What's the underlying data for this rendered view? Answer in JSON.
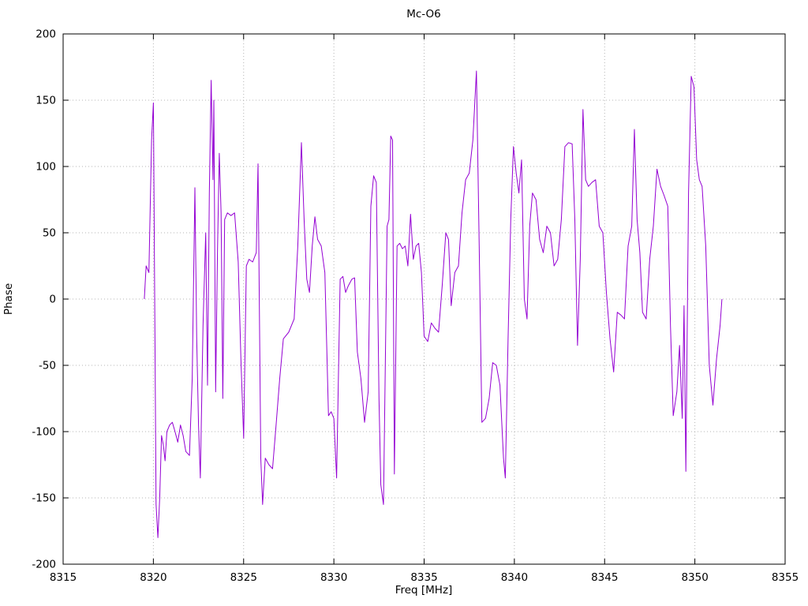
{
  "chart_data": {
    "type": "line",
    "title": "Mc-O6",
    "xlabel": "Freq [MHz]",
    "ylabel": "Phase",
    "xlim": [
      8315,
      8355
    ],
    "ylim": [
      -200,
      200
    ],
    "xticks": [
      8315,
      8320,
      8325,
      8330,
      8335,
      8340,
      8345,
      8350,
      8355
    ],
    "yticks": [
      -200,
      -150,
      -100,
      -50,
      0,
      50,
      100,
      150,
      200
    ],
    "grid": true,
    "legend": "none",
    "line_color": "#9400d3",
    "series": [
      {
        "name": "Phase",
        "color": "#9400d3",
        "points": [
          [
            8319.5,
            0
          ],
          [
            8319.6,
            25
          ],
          [
            8319.75,
            20
          ],
          [
            8319.9,
            120
          ],
          [
            8320.0,
            148
          ],
          [
            8320.15,
            -155
          ],
          [
            8320.25,
            -180
          ],
          [
            8320.35,
            -150
          ],
          [
            8320.45,
            -103
          ],
          [
            8320.55,
            -110
          ],
          [
            8320.65,
            -122
          ],
          [
            8320.75,
            -100
          ],
          [
            8320.9,
            -95
          ],
          [
            8321.05,
            -93
          ],
          [
            8321.2,
            -100
          ],
          [
            8321.35,
            -108
          ],
          [
            8321.5,
            -95
          ],
          [
            8321.65,
            -103
          ],
          [
            8321.8,
            -115
          ],
          [
            8322.0,
            -118
          ],
          [
            8322.15,
            -60
          ],
          [
            8322.3,
            84
          ],
          [
            8322.4,
            -30
          ],
          [
            8322.5,
            -95
          ],
          [
            8322.6,
            -135
          ],
          [
            8322.75,
            -20
          ],
          [
            8322.9,
            50
          ],
          [
            8323.0,
            -65
          ],
          [
            8323.1,
            80
          ],
          [
            8323.2,
            165
          ],
          [
            8323.3,
            90
          ],
          [
            8323.35,
            150
          ],
          [
            8323.45,
            -70
          ],
          [
            8323.55,
            35
          ],
          [
            8323.65,
            110
          ],
          [
            8323.75,
            65
          ],
          [
            8323.85,
            -75
          ],
          [
            8323.95,
            60
          ],
          [
            8324.1,
            65
          ],
          [
            8324.3,
            63
          ],
          [
            8324.5,
            65
          ],
          [
            8324.7,
            28
          ],
          [
            8324.85,
            -45
          ],
          [
            8325.0,
            -105
          ],
          [
            8325.15,
            25
          ],
          [
            8325.3,
            30
          ],
          [
            8325.5,
            28
          ],
          [
            8325.7,
            35
          ],
          [
            8325.8,
            102
          ],
          [
            8325.95,
            -120
          ],
          [
            8326.05,
            -155
          ],
          [
            8326.2,
            -120
          ],
          [
            8326.4,
            -125
          ],
          [
            8326.6,
            -128
          ],
          [
            8326.8,
            -95
          ],
          [
            8327.0,
            -60
          ],
          [
            8327.2,
            -30
          ],
          [
            8327.5,
            -25
          ],
          [
            8327.8,
            -15
          ],
          [
            8328.0,
            40
          ],
          [
            8328.2,
            118
          ],
          [
            8328.35,
            60
          ],
          [
            8328.5,
            15
          ],
          [
            8328.65,
            5
          ],
          [
            8328.8,
            40
          ],
          [
            8328.95,
            62
          ],
          [
            8329.1,
            45
          ],
          [
            8329.3,
            40
          ],
          [
            8329.5,
            20
          ],
          [
            8329.7,
            -88
          ],
          [
            8329.85,
            -85
          ],
          [
            8330.0,
            -90
          ],
          [
            8330.15,
            -135
          ],
          [
            8330.35,
            15
          ],
          [
            8330.5,
            17
          ],
          [
            8330.65,
            5
          ],
          [
            8330.8,
            10
          ],
          [
            8331.0,
            15
          ],
          [
            8331.15,
            16
          ],
          [
            8331.3,
            -40
          ],
          [
            8331.5,
            -60
          ],
          [
            8331.7,
            -93
          ],
          [
            8331.9,
            -70
          ],
          [
            8332.05,
            70
          ],
          [
            8332.2,
            93
          ],
          [
            8332.35,
            88
          ],
          [
            8332.5,
            -75
          ],
          [
            8332.6,
            -140
          ],
          [
            8332.75,
            -155
          ],
          [
            8332.95,
            55
          ],
          [
            8333.05,
            60
          ],
          [
            8333.15,
            123
          ],
          [
            8333.25,
            120
          ],
          [
            8333.35,
            -132
          ],
          [
            8333.5,
            40
          ],
          [
            8333.65,
            42
          ],
          [
            8333.8,
            38
          ],
          [
            8333.95,
            40
          ],
          [
            8334.1,
            25
          ],
          [
            8334.25,
            64
          ],
          [
            8334.4,
            30
          ],
          [
            8334.55,
            40
          ],
          [
            8334.7,
            42
          ],
          [
            8334.85,
            20
          ],
          [
            8335.0,
            -28
          ],
          [
            8335.2,
            -32
          ],
          [
            8335.4,
            -18
          ],
          [
            8335.6,
            -22
          ],
          [
            8335.8,
            -25
          ],
          [
            8336.0,
            10
          ],
          [
            8336.2,
            50
          ],
          [
            8336.35,
            45
          ],
          [
            8336.5,
            -5
          ],
          [
            8336.7,
            20
          ],
          [
            8336.9,
            25
          ],
          [
            8337.1,
            65
          ],
          [
            8337.3,
            90
          ],
          [
            8337.5,
            95
          ],
          [
            8337.7,
            120
          ],
          [
            8337.9,
            172
          ],
          [
            8338.05,
            40
          ],
          [
            8338.2,
            -93
          ],
          [
            8338.4,
            -90
          ],
          [
            8338.6,
            -75
          ],
          [
            8338.8,
            -48
          ],
          [
            8339.0,
            -50
          ],
          [
            8339.2,
            -65
          ],
          [
            8339.4,
            -120
          ],
          [
            8339.5,
            -135
          ],
          [
            8339.65,
            -30
          ],
          [
            8339.8,
            60
          ],
          [
            8339.95,
            115
          ],
          [
            8340.1,
            95
          ],
          [
            8340.25,
            80
          ],
          [
            8340.4,
            105
          ],
          [
            8340.55,
            0
          ],
          [
            8340.7,
            -15
          ],
          [
            8340.85,
            55
          ],
          [
            8341.0,
            80
          ],
          [
            8341.2,
            75
          ],
          [
            8341.4,
            45
          ],
          [
            8341.6,
            35
          ],
          [
            8341.8,
            55
          ],
          [
            8342.0,
            50
          ],
          [
            8342.2,
            25
          ],
          [
            8342.4,
            30
          ],
          [
            8342.6,
            60
          ],
          [
            8342.8,
            115
          ],
          [
            8343.0,
            118
          ],
          [
            8343.2,
            117
          ],
          [
            8343.35,
            60
          ],
          [
            8343.5,
            -35
          ],
          [
            8343.65,
            30
          ],
          [
            8343.8,
            143
          ],
          [
            8343.95,
            90
          ],
          [
            8344.1,
            85
          ],
          [
            8344.3,
            88
          ],
          [
            8344.5,
            90
          ],
          [
            8344.7,
            55
          ],
          [
            8344.9,
            50
          ],
          [
            8345.1,
            5
          ],
          [
            8345.3,
            -30
          ],
          [
            8345.5,
            -55
          ],
          [
            8345.7,
            -10
          ],
          [
            8345.9,
            -12
          ],
          [
            8346.1,
            -15
          ],
          [
            8346.3,
            40
          ],
          [
            8346.5,
            55
          ],
          [
            8346.65,
            128
          ],
          [
            8346.8,
            60
          ],
          [
            8346.95,
            35
          ],
          [
            8347.1,
            -10
          ],
          [
            8347.3,
            -15
          ],
          [
            8347.5,
            30
          ],
          [
            8347.7,
            55
          ],
          [
            8347.9,
            98
          ],
          [
            8348.1,
            85
          ],
          [
            8348.3,
            78
          ],
          [
            8348.5,
            70
          ],
          [
            8348.65,
            -20
          ],
          [
            8348.8,
            -88
          ],
          [
            8349.0,
            -70
          ],
          [
            8349.15,
            -35
          ],
          [
            8349.3,
            -90
          ],
          [
            8349.4,
            -5
          ],
          [
            8349.5,
            -130
          ],
          [
            8349.65,
            80
          ],
          [
            8349.8,
            168
          ],
          [
            8349.95,
            160
          ],
          [
            8350.1,
            105
          ],
          [
            8350.25,
            90
          ],
          [
            8350.4,
            85
          ],
          [
            8350.6,
            40
          ],
          [
            8350.8,
            -50
          ],
          [
            8351.0,
            -80
          ],
          [
            8351.2,
            -45
          ],
          [
            8351.4,
            -20
          ],
          [
            8351.5,
            0
          ]
        ]
      }
    ]
  }
}
